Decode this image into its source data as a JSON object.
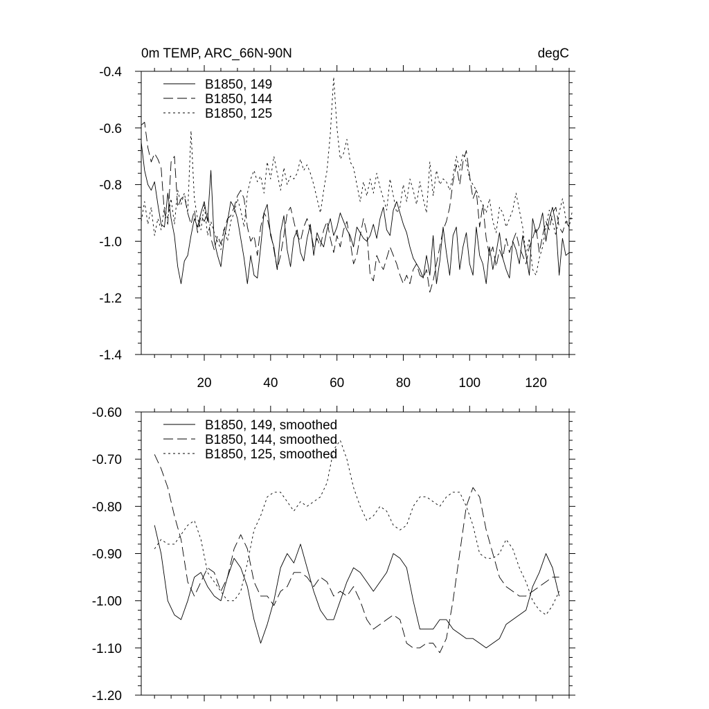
{
  "chart_data": [
    {
      "type": "line",
      "title": "0m TEMP, ARC_66N-90N",
      "units": "degC",
      "xlim": [
        1,
        130
      ],
      "ylim": [
        -1.4,
        -0.4
      ],
      "x_ticks": [
        20,
        40,
        60,
        80,
        100,
        120
      ],
      "x_tick_labels": [
        "20",
        "40",
        "60",
        "80",
        "100",
        "120"
      ],
      "y_ticks": [
        -1.4,
        -1.2,
        -1.0,
        -0.8,
        -0.6,
        -0.4
      ],
      "y_tick_labels": [
        "-1.4",
        "-1.2",
        "-1.0",
        "-0.8",
        "-0.6",
        "-0.4"
      ],
      "legend_position": "top-left",
      "series": [
        {
          "name": "B1850, 149",
          "dash": "solid",
          "x_start": 1,
          "values": [
            -0.65,
            -0.75,
            -0.8,
            -0.82,
            -0.79,
            -0.87,
            -0.94,
            -0.95,
            -0.83,
            -0.92,
            -0.98,
            -1.09,
            -1.15,
            -1.07,
            -1.05,
            -0.98,
            -0.92,
            -0.95,
            -0.9,
            -0.86,
            -0.93,
            -0.75,
            -1.0,
            -1.05,
            -1.09,
            -0.99,
            -0.93,
            -0.86,
            -0.88,
            -0.92,
            -0.99,
            -1.06,
            -1.15,
            -1.05,
            -1.12,
            -1.13,
            -1.02,
            -0.9,
            -0.87,
            -0.98,
            -1.02,
            -1.1,
            -0.97,
            -0.91,
            -1.03,
            -1.09,
            -0.99,
            -0.96,
            -1.04,
            -1.07,
            -0.99,
            -0.94,
            -1.05,
            -0.97,
            -1.0,
            -1.02,
            -0.96,
            -0.92,
            -0.98,
            -0.95,
            -0.9,
            -0.93,
            -0.96,
            -0.98,
            -1.02,
            -0.95,
            -0.97,
            -0.99,
            -1.0,
            -0.98,
            -0.94,
            -0.99,
            -0.92,
            -0.88,
            -0.96,
            -0.98,
            -0.89,
            -0.86,
            -0.9,
            -0.94,
            -0.97,
            -1.02,
            -1.06,
            -1.08,
            -1.1,
            -1.13,
            -1.05,
            -1.12,
            -0.98,
            -1.15,
            -1.07,
            -0.95,
            -1.04,
            -1.12,
            -0.98,
            -0.95,
            -1.1,
            -1.02,
            -0.97,
            -1.08,
            -1.12,
            -0.95,
            -1.05,
            -1.08,
            -1.15,
            -1.02,
            -1.1,
            -1.04,
            -0.97,
            -1.06,
            -1.1,
            -1.13,
            -1.0,
            -1.03,
            -1.08,
            -0.98,
            -1.05,
            -1.12,
            -0.92,
            -0.97,
            -0.95,
            -0.9,
            -1.0,
            -0.92,
            -0.88,
            -0.94,
            -1.12,
            -0.99,
            -1.05,
            -1.04
          ]
        },
        {
          "name": "B1850, 144",
          "dash": "long-dash",
          "x_start": 1,
          "values": [
            -0.59,
            -0.58,
            -0.67,
            -0.72,
            -0.69,
            -0.71,
            -0.74,
            -0.9,
            -0.94,
            -0.72,
            -0.7,
            -0.88,
            -0.85,
            -0.84,
            -0.9,
            -0.94,
            -0.89,
            -0.97,
            -0.91,
            -0.93,
            -0.9,
            -0.99,
            -1.03,
            -0.98,
            -1.01,
            -0.96,
            -0.92,
            -0.91,
            -0.88,
            -0.84,
            -0.82,
            -0.85,
            -0.95,
            -1.0,
            -0.98,
            -1.05,
            -0.95,
            -0.9,
            -0.92,
            -0.97,
            -1.03,
            -1.1,
            -1.05,
            -0.98,
            -0.9,
            -0.88,
            -0.93,
            -0.98,
            -1.0,
            -0.95,
            -0.92,
            -0.96,
            -1.02,
            -0.99,
            -1.02,
            -0.96,
            -0.93,
            -0.99,
            -1.04,
            -0.98,
            -1.02,
            -0.96,
            -0.93,
            -1.0,
            -1.08,
            -1.05,
            -0.98,
            -0.92,
            -0.97,
            -1.12,
            -1.14,
            -1.05,
            -1.08,
            -1.1,
            -1.06,
            -1.02,
            -1.05,
            -1.08,
            -1.12,
            -1.15,
            -1.12,
            -1.15,
            -1.1,
            -1.08,
            -1.12,
            -1.13,
            -1.1,
            -1.18,
            -1.14,
            -1.08,
            -1.02,
            -0.96,
            -0.93,
            -0.88,
            -0.79,
            -0.73,
            -0.8,
            -0.72,
            -0.68,
            -0.77,
            -0.85,
            -0.82,
            -0.95,
            -0.87,
            -0.99,
            -1.05,
            -1.02,
            -1.09,
            -1.03,
            -1.06,
            -0.99,
            -1.04,
            -1.0,
            -0.97,
            -1.02,
            -1.05,
            -1.08,
            -1.02,
            -0.99,
            -0.95,
            -1.04,
            -0.98,
            -0.93,
            -0.96,
            -0.9,
            -0.88,
            -0.95,
            -0.97,
            -0.93,
            -0.95
          ]
        },
        {
          "name": "B1850, 125",
          "dash": "short-dash",
          "x_start": 1,
          "values": [
            -0.93,
            -0.86,
            -0.94,
            -0.88,
            -0.98,
            -0.92,
            -0.96,
            -0.88,
            -0.92,
            -0.85,
            -0.94,
            -0.82,
            -0.87,
            -0.83,
            -0.9,
            -0.61,
            -0.85,
            -0.92,
            -0.96,
            -0.87,
            -0.98,
            -0.93,
            -0.97,
            -1.0,
            -1.03,
            -0.95,
            -1.0,
            -0.93,
            -0.9,
            -0.85,
            -0.89,
            -0.95,
            -0.83,
            -0.78,
            -0.75,
            -0.79,
            -0.77,
            -0.83,
            -0.72,
            -0.78,
            -0.7,
            -0.76,
            -0.82,
            -0.74,
            -0.8,
            -0.77,
            -0.78,
            -0.76,
            -0.71,
            -0.75,
            -0.73,
            -0.76,
            -0.8,
            -0.85,
            -0.9,
            -0.82,
            -0.75,
            -0.62,
            -0.42,
            -0.6,
            -0.71,
            -0.69,
            -0.64,
            -0.72,
            -0.74,
            -0.8,
            -0.86,
            -0.79,
            -0.84,
            -0.78,
            -0.83,
            -0.76,
            -0.81,
            -0.85,
            -0.89,
            -0.78,
            -0.84,
            -0.9,
            -0.88,
            -0.8,
            -0.86,
            -0.78,
            -0.82,
            -0.87,
            -0.79,
            -0.85,
            -0.9,
            -0.72,
            -0.84,
            -0.75,
            -0.8,
            -0.78,
            -0.79,
            -0.82,
            -0.77,
            -0.7,
            -0.75,
            -0.69,
            -0.72,
            -0.78,
            -0.8,
            -0.82,
            -0.85,
            -0.87,
            -0.9,
            -0.85,
            -0.93,
            -0.97,
            -0.88,
            -0.9,
            -0.95,
            -0.92,
            -0.89,
            -0.83,
            -0.89,
            -0.95,
            -1.05,
            -0.99,
            -1.1,
            -1.12,
            -1.06,
            -1.02,
            -0.95,
            -0.89,
            -0.93,
            -0.98,
            -0.9,
            -0.85,
            -0.92,
            -0.95,
            -0.89
          ]
        }
      ]
    },
    {
      "type": "line",
      "title": "",
      "units": "",
      "xlim": [
        1,
        130
      ],
      "ylim": [
        -1.2,
        -0.6
      ],
      "x_ticks": [
        20,
        40,
        60,
        80,
        100,
        120
      ],
      "x_tick_labels": [],
      "y_ticks": [
        -1.2,
        -1.1,
        -1.0,
        -0.9,
        -0.8,
        -0.7,
        -0.6
      ],
      "y_tick_labels": [
        "-1.20",
        "-1.10",
        "-1.00",
        "-0.90",
        "-0.80",
        "-0.70",
        "-0.60"
      ],
      "legend_position": "top-left",
      "series": [
        {
          "name": "B1850, 149, smoothed",
          "dash": "solid",
          "x": [
            5,
            7,
            9,
            11,
            13,
            15,
            17,
            19,
            21,
            23,
            25,
            27,
            29,
            31,
            33,
            35,
            37,
            39,
            41,
            43,
            45,
            47,
            49,
            51,
            53,
            55,
            57,
            59,
            61,
            63,
            65,
            67,
            69,
            71,
            73,
            75,
            77,
            79,
            81,
            83,
            85,
            87,
            89,
            91,
            93,
            95,
            97,
            99,
            101,
            103,
            105,
            107,
            109,
            111,
            113,
            115,
            117,
            119,
            121,
            123,
            125,
            127
          ],
          "values": [
            -0.84,
            -0.9,
            -1.0,
            -1.03,
            -1.04,
            -1.0,
            -0.95,
            -0.94,
            -0.97,
            -0.99,
            -1.0,
            -0.95,
            -0.91,
            -0.93,
            -0.97,
            -1.04,
            -1.09,
            -1.05,
            -1.0,
            -0.93,
            -0.9,
            -0.92,
            -0.88,
            -0.93,
            -0.98,
            -1.02,
            -1.04,
            -1.04,
            -1.0,
            -0.96,
            -0.93,
            -0.94,
            -0.96,
            -0.98,
            -0.96,
            -0.94,
            -0.9,
            -0.91,
            -0.93,
            -1.0,
            -1.06,
            -1.06,
            -1.06,
            -1.04,
            -1.04,
            -1.06,
            -1.07,
            -1.08,
            -1.08,
            -1.09,
            -1.1,
            -1.09,
            -1.08,
            -1.05,
            -1.04,
            -1.03,
            -1.02,
            -0.97,
            -0.94,
            -0.9,
            -0.93,
            -0.99
          ]
        },
        {
          "name": "B1850, 144, smoothed",
          "dash": "long-dash",
          "x": [
            5,
            7,
            9,
            11,
            13,
            15,
            17,
            19,
            21,
            23,
            25,
            27,
            29,
            31,
            33,
            35,
            37,
            39,
            41,
            43,
            45,
            47,
            49,
            51,
            53,
            55,
            57,
            59,
            61,
            63,
            65,
            67,
            69,
            71,
            73,
            75,
            77,
            79,
            81,
            83,
            85,
            87,
            89,
            91,
            93,
            95,
            97,
            99,
            101,
            103,
            105,
            107,
            109,
            111,
            113,
            115,
            117,
            119,
            121,
            123,
            125,
            127
          ],
          "values": [
            -0.69,
            -0.72,
            -0.76,
            -0.82,
            -0.87,
            -0.96,
            -0.99,
            -0.96,
            -0.93,
            -0.94,
            -0.98,
            -0.95,
            -0.89,
            -0.86,
            -0.89,
            -0.96,
            -0.99,
            -0.99,
            -1.01,
            -0.98,
            -0.97,
            -0.94,
            -0.94,
            -0.95,
            -0.97,
            -0.95,
            -0.96,
            -0.99,
            -0.98,
            -0.99,
            -0.97,
            -1.0,
            -1.04,
            -1.06,
            -1.05,
            -1.04,
            -1.03,
            -1.04,
            -1.09,
            -1.1,
            -1.1,
            -1.09,
            -1.09,
            -1.11,
            -1.08,
            -1.0,
            -0.9,
            -0.8,
            -0.76,
            -0.78,
            -0.85,
            -0.9,
            -0.95,
            -0.97,
            -0.98,
            -0.99,
            -0.99,
            -0.98,
            -0.97,
            -0.96,
            -0.95,
            -0.95
          ]
        },
        {
          "name": "B1850, 125, smoothed",
          "dash": "short-dash",
          "x": [
            5,
            7,
            9,
            11,
            13,
            15,
            17,
            19,
            21,
            23,
            25,
            27,
            29,
            31,
            33,
            35,
            37,
            39,
            41,
            43,
            45,
            47,
            49,
            51,
            53,
            55,
            57,
            59,
            61,
            63,
            65,
            67,
            69,
            71,
            73,
            75,
            77,
            79,
            81,
            83,
            85,
            87,
            89,
            91,
            93,
            95,
            97,
            99,
            101,
            103,
            105,
            107,
            109,
            111,
            113,
            115,
            117,
            119,
            121,
            123,
            125,
            127
          ],
          "values": [
            -0.89,
            -0.87,
            -0.88,
            -0.88,
            -0.86,
            -0.84,
            -0.83,
            -0.87,
            -0.94,
            -0.96,
            -0.98,
            -1.0,
            -1.0,
            -0.98,
            -0.92,
            -0.85,
            -0.82,
            -0.78,
            -0.77,
            -0.77,
            -0.79,
            -0.81,
            -0.79,
            -0.8,
            -0.79,
            -0.78,
            -0.75,
            -0.68,
            -0.66,
            -0.7,
            -0.76,
            -0.8,
            -0.83,
            -0.82,
            -0.8,
            -0.81,
            -0.84,
            -0.85,
            -0.84,
            -0.8,
            -0.78,
            -0.78,
            -0.79,
            -0.8,
            -0.78,
            -0.77,
            -0.77,
            -0.8,
            -0.84,
            -0.9,
            -0.91,
            -0.91,
            -0.9,
            -0.87,
            -0.89,
            -0.93,
            -0.96,
            -1.0,
            -1.02,
            -1.03,
            -1.01,
            -0.98
          ]
        }
      ]
    }
  ]
}
